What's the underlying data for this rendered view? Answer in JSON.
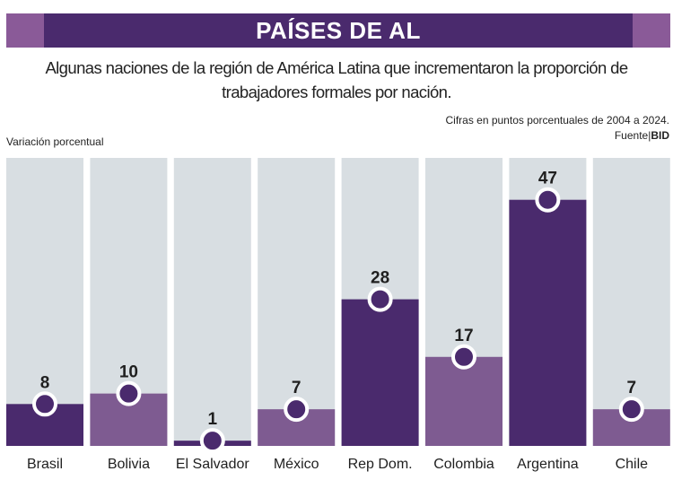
{
  "header": {
    "title": "PAÍSES DE AL"
  },
  "subtitle": "Algunas naciones de la región de América Latina que incrementaron la proporción de trabajadores formales por nación.",
  "note": {
    "line1": "Cifras en puntos porcentuales de 2004 a 2024.",
    "source_prefix": "Fuente|",
    "source_name": "BID"
  },
  "chart_data": {
    "type": "bar",
    "title": "PAÍSES DE AL",
    "ylabel": "Variación porcentual",
    "categories": [
      "Brasil",
      "Bolivia",
      "El Salvador",
      "México",
      "Rep Dom.",
      "Colombia",
      "Argentina",
      "Chile"
    ],
    "values": [
      8,
      10,
      1,
      7,
      28,
      17,
      47,
      7
    ],
    "ylim": [
      0,
      55
    ],
    "grid": false,
    "colors": {
      "bar_dark": "#4a2a6d",
      "bar_light": "#7e5b91",
      "background_column": "#d8dee2",
      "marker_fill": "#4a2a6d",
      "marker_ring": "#ffffff"
    },
    "bar_shades": [
      "dark",
      "light",
      "dark",
      "light",
      "dark",
      "light",
      "dark",
      "light"
    ]
  }
}
